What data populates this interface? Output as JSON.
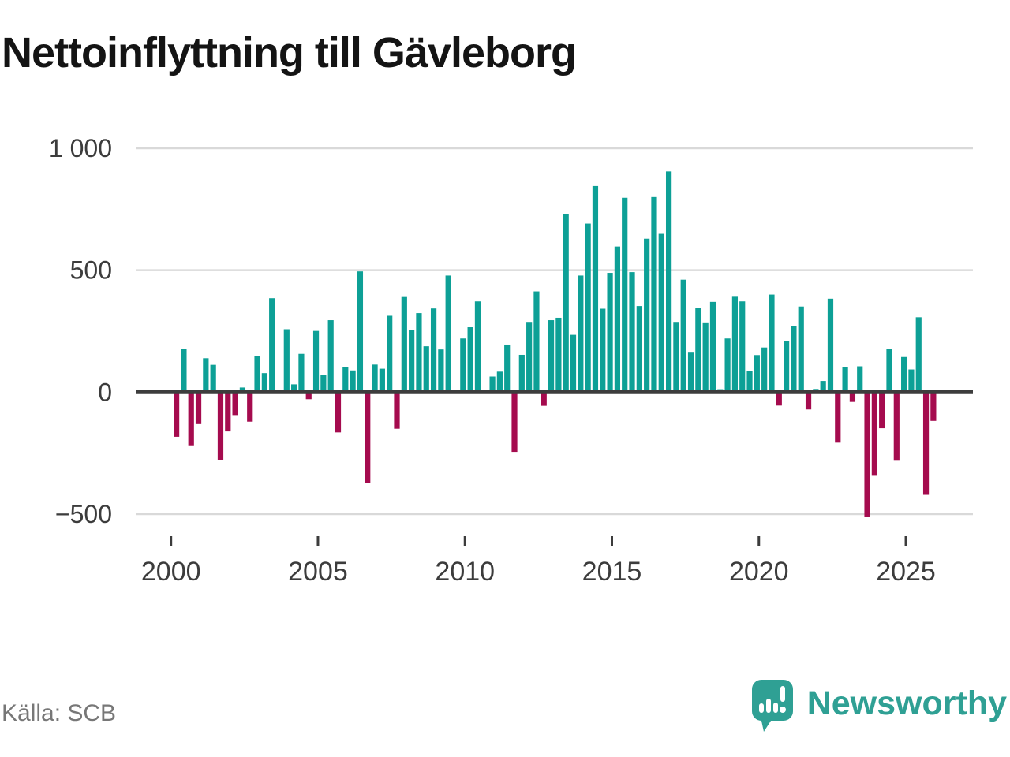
{
  "chart_data": {
    "type": "bar",
    "title": "Nettoinflyttning till Gävleborg",
    "frequency": "quarterly",
    "xlabel": "",
    "ylabel": "",
    "ylim": [
      -500,
      1000
    ],
    "grid": "horizontal",
    "legend": "none",
    "yticks": [
      {
        "value": 1000,
        "label": "1 000"
      },
      {
        "value": 500,
        "label": "500"
      },
      {
        "value": 0,
        "label": "0"
      },
      {
        "value": -500,
        "label": "−500"
      }
    ],
    "xticks": [
      "2000",
      "2005",
      "2010",
      "2015",
      "2020",
      "2025"
    ],
    "series": [
      {
        "year": 2000,
        "values": [
          -183,
          177,
          -218,
          -131
        ]
      },
      {
        "year": 2001,
        "values": [
          139,
          112,
          -277,
          -161
        ]
      },
      {
        "year": 2002,
        "values": [
          -94,
          19,
          -121,
          147
        ]
      },
      {
        "year": 2003,
        "values": [
          78,
          385,
          0,
          258
        ]
      },
      {
        "year": 2004,
        "values": [
          32,
          157,
          -29,
          251
        ]
      },
      {
        "year": 2005,
        "values": [
          69,
          295,
          -165,
          104
        ]
      },
      {
        "year": 2006,
        "values": [
          89,
          495,
          -373,
          113
        ]
      },
      {
        "year": 2007,
        "values": [
          96,
          313,
          -150,
          390
        ]
      },
      {
        "year": 2008,
        "values": [
          254,
          324,
          188,
          343
        ]
      },
      {
        "year": 2009,
        "values": [
          175,
          478,
          0,
          220
        ]
      },
      {
        "year": 2010,
        "values": [
          266,
          372,
          0,
          64
        ]
      },
      {
        "year": 2011,
        "values": [
          84,
          195,
          -245,
          153
        ]
      },
      {
        "year": 2012,
        "values": [
          288,
          413,
          -56,
          295
        ]
      },
      {
        "year": 2013,
        "values": [
          305,
          729,
          235,
          478
        ]
      },
      {
        "year": 2014,
        "values": [
          691,
          845,
          342,
          489
        ]
      },
      {
        "year": 2015,
        "values": [
          597,
          797,
          492,
          353
        ]
      },
      {
        "year": 2016,
        "values": [
          629,
          800,
          649,
          905
        ]
      },
      {
        "year": 2017,
        "values": [
          288,
          461,
          162,
          345
        ]
      },
      {
        "year": 2018,
        "values": [
          286,
          370,
          12,
          220
        ]
      },
      {
        "year": 2019,
        "values": [
          391,
          372,
          86,
          152
        ]
      },
      {
        "year": 2020,
        "values": [
          183,
          400,
          -55,
          209
        ]
      },
      {
        "year": 2021,
        "values": [
          271,
          351,
          -71,
          13
        ]
      },
      {
        "year": 2022,
        "values": [
          46,
          383,
          -207,
          104
        ]
      },
      {
        "year": 2023,
        "values": [
          -40,
          106,
          -513,
          -343
        ]
      },
      {
        "year": 2024,
        "values": [
          -148,
          178,
          -278,
          144
        ]
      },
      {
        "year": 2025,
        "values": [
          93,
          307,
          -421,
          -118
        ]
      }
    ]
  },
  "colors": {
    "positive_bar": "#0da096",
    "negative_bar": "#a50b4e",
    "zero_line": "#3d3d3d",
    "gridline": "#d9d9d9",
    "axis_text": "#3c3c3c",
    "title_text": "#141414",
    "source_text": "#777777",
    "brand_teal": "#2fa094"
  },
  "footer": {
    "source": "Källa: SCB",
    "brand": "Newsworthy"
  }
}
